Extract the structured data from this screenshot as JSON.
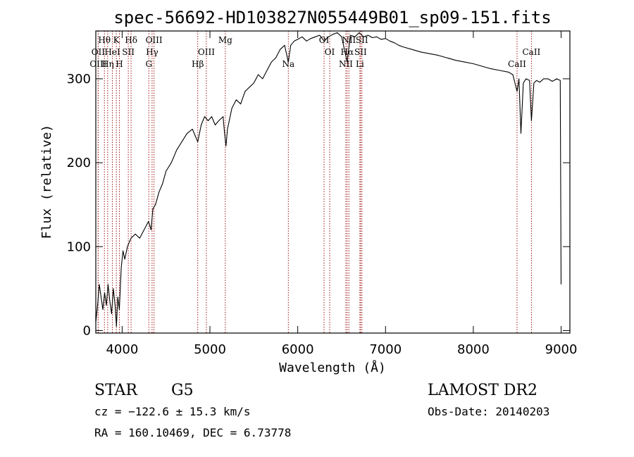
{
  "chart_data": {
    "type": "line",
    "title": "spec-56692-HD103827N055449B01_sp09-151.fits",
    "xlabel": "Wavelength (Å)",
    "ylabel": "Flux (relative)",
    "xlim": [
      3700,
      9100
    ],
    "ylim": [
      -3,
      357
    ],
    "xticks": [
      4000,
      5000,
      6000,
      7000,
      8000,
      9000
    ],
    "yticks": [
      0,
      100,
      200,
      300
    ],
    "grid": false,
    "series": [
      {
        "name": "",
        "x": [
          3700,
          3720,
          3740,
          3760,
          3780,
          3800,
          3820,
          3840,
          3860,
          3880,
          3900,
          3920,
          3935,
          3950,
          3968,
          3990,
          4010,
          4030,
          4060,
          4100,
          4150,
          4200,
          4250,
          4300,
          4330,
          4350,
          4380,
          4420,
          4460,
          4500,
          4560,
          4620,
          4680,
          4740,
          4800,
          4861,
          4900,
          4940,
          4980,
          5020,
          5060,
          5100,
          5150,
          5167,
          5183,
          5200,
          5250,
          5300,
          5350,
          5400,
          5450,
          5500,
          5550,
          5600,
          5650,
          5700,
          5750,
          5800,
          5850,
          5893,
          5920,
          5960,
          6000,
          6050,
          6100,
          6150,
          6200,
          6250,
          6300,
          6350,
          6400,
          6450,
          6500,
          6563,
          6600,
          6650,
          6700,
          6750,
          6800,
          6850,
          6900,
          6950,
          7000,
          7050,
          7100,
          7150,
          7200,
          7300,
          7400,
          7500,
          7600,
          7700,
          7800,
          7900,
          8000,
          8100,
          8200,
          8300,
          8400,
          8450,
          8498,
          8520,
          8542,
          8570,
          8600,
          8640,
          8662,
          8690,
          8720,
          8760,
          8800,
          8850,
          8900,
          8950,
          8990,
          9000
        ],
        "y": [
          10,
          30,
          55,
          40,
          25,
          45,
          30,
          55,
          35,
          20,
          50,
          30,
          5,
          40,
          25,
          75,
          95,
          85,
          100,
          110,
          115,
          110,
          120,
          130,
          120,
          145,
          150,
          165,
          175,
          190,
          200,
          215,
          225,
          235,
          240,
          225,
          245,
          255,
          250,
          255,
          245,
          250,
          255,
          235,
          220,
          240,
          265,
          275,
          270,
          285,
          290,
          295,
          305,
          300,
          310,
          320,
          325,
          335,
          340,
          320,
          340,
          345,
          347,
          350,
          345,
          348,
          350,
          352,
          345,
          350,
          353,
          355,
          350,
          320,
          352,
          350,
          355,
          350,
          352,
          349,
          350,
          347,
          348,
          345,
          343,
          340,
          338,
          335,
          332,
          330,
          328,
          325,
          322,
          320,
          318,
          315,
          312,
          310,
          308,
          305,
          285,
          300,
          235,
          295,
          300,
          298,
          250,
          295,
          298,
          296,
          300,
          300,
          297,
          300,
          298,
          55
        ]
      }
    ],
    "line_markers": [
      {
        "label": "OII",
        "x": 3727,
        "row": 2
      },
      {
        "label": "OIII",
        "x": 3727,
        "row": 3
      },
      {
        "label": "Hθ",
        "x": 3798,
        "row": 1
      },
      {
        "label": "Hη",
        "x": 3835,
        "row": 3
      },
      {
        "label": "HeI",
        "x": 3889,
        "row": 2
      },
      {
        "label": "K",
        "x": 3934,
        "row": 1
      },
      {
        "label": "H",
        "x": 3969,
        "row": 3
      },
      {
        "label": "SII",
        "x": 4070,
        "row": 2
      },
      {
        "label": "Hδ",
        "x": 4102,
        "row": 1
      },
      {
        "label": "G",
        "x": 4304,
        "row": 3
      },
      {
        "label": "Hγ",
        "x": 4341,
        "row": 2
      },
      {
        "label": "OIII",
        "x": 4363,
        "row": 1
      },
      {
        "label": "Hβ",
        "x": 4861,
        "row": 3
      },
      {
        "label": "OIII",
        "x": 4959,
        "row": 2
      },
      {
        "label": "Mg",
        "x": 5175,
        "row": 1
      },
      {
        "label": "Na",
        "x": 5893,
        "row": 3
      },
      {
        "label": "OI",
        "x": 6300,
        "row": 1
      },
      {
        "label": "OI",
        "x": 6364,
        "row": 2
      },
      {
        "label": "NII",
        "x": 6548,
        "row": 3
      },
      {
        "label": "Hα",
        "x": 6563,
        "row": 2
      },
      {
        "label": "NII",
        "x": 6583,
        "row": 1
      },
      {
        "label": "Li",
        "x": 6708,
        "row": 3
      },
      {
        "label": "SII",
        "x": 6716,
        "row": 2
      },
      {
        "label": "SII",
        "x": 6731,
        "row": 1
      },
      {
        "label": "CaII",
        "x": 8498,
        "row": 3
      },
      {
        "label": "CaII",
        "x": 8662,
        "row": 2
      }
    ]
  },
  "info": {
    "class": "STAR",
    "subclass": "G5",
    "survey": "LAMOST DR2",
    "cz": "cz = −122.6 ± 15.3 km/s",
    "obs_date": "Obs-Date: 20140203",
    "coords": "RA = 160.10469, DEC =   6.73778"
  },
  "colors": {
    "spectrum": "#000000",
    "marker_line": "#a01818",
    "axes": "#000000",
    "background": "#ffffff"
  }
}
